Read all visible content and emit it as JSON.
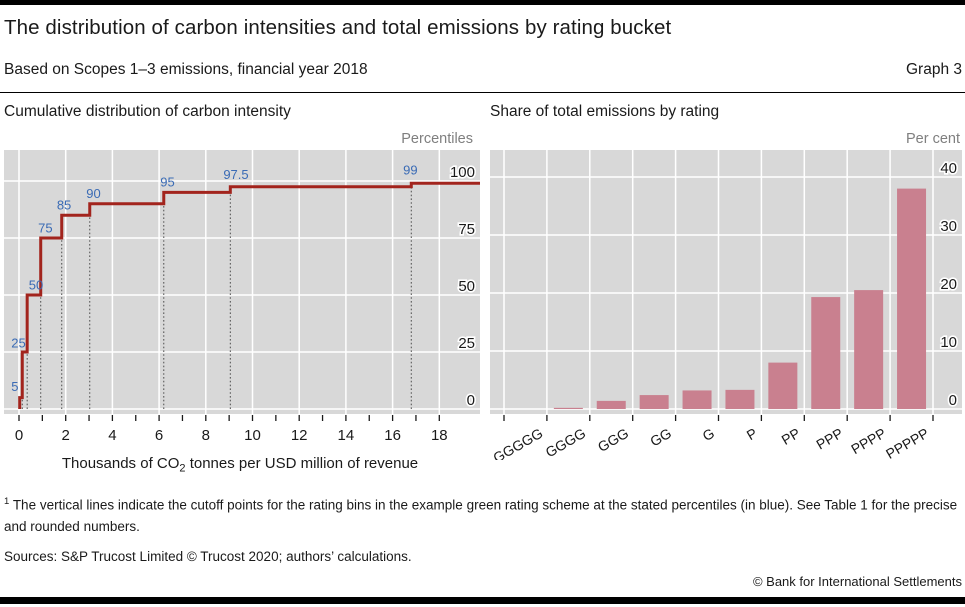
{
  "header": {
    "title": "The distribution of carbon intensities and total emissions by rating bucket",
    "subtitle": "Based on Scopes 1–3 emissions, financial year 2018",
    "graph_label": "Graph 3"
  },
  "colors": {
    "plot_bg": "#d8d8d8",
    "grid": "#ffffff",
    "text": "#1a1a1a",
    "muted": "#7f7f7f",
    "rule": "#000000",
    "line_red": "#a2241d",
    "bar_pink": "#c9808f",
    "annotation_blue": "#3a6bb5",
    "cutoff_gray": "#4d4d4d"
  },
  "chart_data": [
    {
      "type": "line",
      "panel": "left",
      "title": "Cumulative distribution of carbon intensity",
      "unit": "Percentiles",
      "xlabel": "Thousands of CO2 tonnes per USD million of revenue",
      "xlabel_parts": {
        "pre": "Thousands of CO",
        "sub": "2",
        "post": " tonnes per USD million of revenue"
      },
      "xlim": [
        0,
        19.7
      ],
      "ylim": [
        0,
        113
      ],
      "x_ticks": [
        0,
        1,
        2,
        3,
        4,
        5,
        6,
        7,
        8,
        9,
        10,
        11,
        12,
        13,
        14,
        15,
        16,
        17,
        18
      ],
      "x_labeled_ticks": [
        0,
        2,
        4,
        6,
        8,
        10,
        12,
        14,
        16,
        18
      ],
      "grid_x": [
        0,
        2,
        4,
        6,
        8,
        10,
        12,
        14,
        16,
        18
      ],
      "y_ticks": [
        0,
        25,
        50,
        75,
        100
      ],
      "steps": [
        {
          "percentile": 5,
          "cutoff": 0.03
        },
        {
          "percentile": 25,
          "cutoff": 0.14
        },
        {
          "percentile": 50,
          "cutoff": 0.35
        },
        {
          "percentile": 75,
          "cutoff": 0.93
        },
        {
          "percentile": 85,
          "cutoff": 1.83
        },
        {
          "percentile": 90,
          "cutoff": 3.03
        },
        {
          "percentile": 95,
          "cutoff": 6.2
        },
        {
          "percentile": 97.5,
          "cutoff": 9.05
        },
        {
          "percentile": 99,
          "cutoff": 16.8
        }
      ],
      "annotations": [
        {
          "text": "5",
          "ax": -0.33,
          "ay": 8
        },
        {
          "text": "25",
          "ax": -0.33,
          "ay": 27
        },
        {
          "text": "50",
          "ax": 0.42,
          "ay": 52.5
        },
        {
          "text": "75",
          "ax": 0.82,
          "ay": 77.5
        },
        {
          "text": "85",
          "ax": 1.62,
          "ay": 87.5
        },
        {
          "text": "90",
          "ax": 2.88,
          "ay": 92.5
        },
        {
          "text": "95",
          "ax": 6.05,
          "ay": 97.5
        },
        {
          "text": "97.5",
          "ax": 8.75,
          "ay": 100.8
        },
        {
          "text": "99",
          "ax": 16.45,
          "ay": 102.8
        }
      ],
      "legend": "none",
      "grid": "on"
    },
    {
      "type": "bar",
      "panel": "right",
      "title": "Share of total emissions by rating",
      "unit": "Per cent",
      "categories": [
        "GGGGG",
        "GGGG",
        "GGG",
        "GG",
        "G",
        "P",
        "PP",
        "PPP",
        "PPPP",
        "PPPPP"
      ],
      "values": [
        0,
        0.2,
        1.4,
        2.4,
        3.2,
        3.3,
        8,
        19.3,
        20.5,
        38
      ],
      "ylim": [
        0,
        45
      ],
      "y_ticks": [
        0,
        10,
        20,
        30,
        40
      ],
      "legend": "none",
      "grid": "on"
    }
  ],
  "footnote": {
    "marker": "1",
    "text": "The vertical lines indicate the cutoff points for the rating bins in the example green rating scheme at the stated percentiles (in blue). See Table 1 for the precise and rounded numbers.",
    "sources": "Sources: S&P Trucost Limited © Trucost 2020; authors’ calculations.",
    "copyright": "© Bank for International Settlements"
  }
}
